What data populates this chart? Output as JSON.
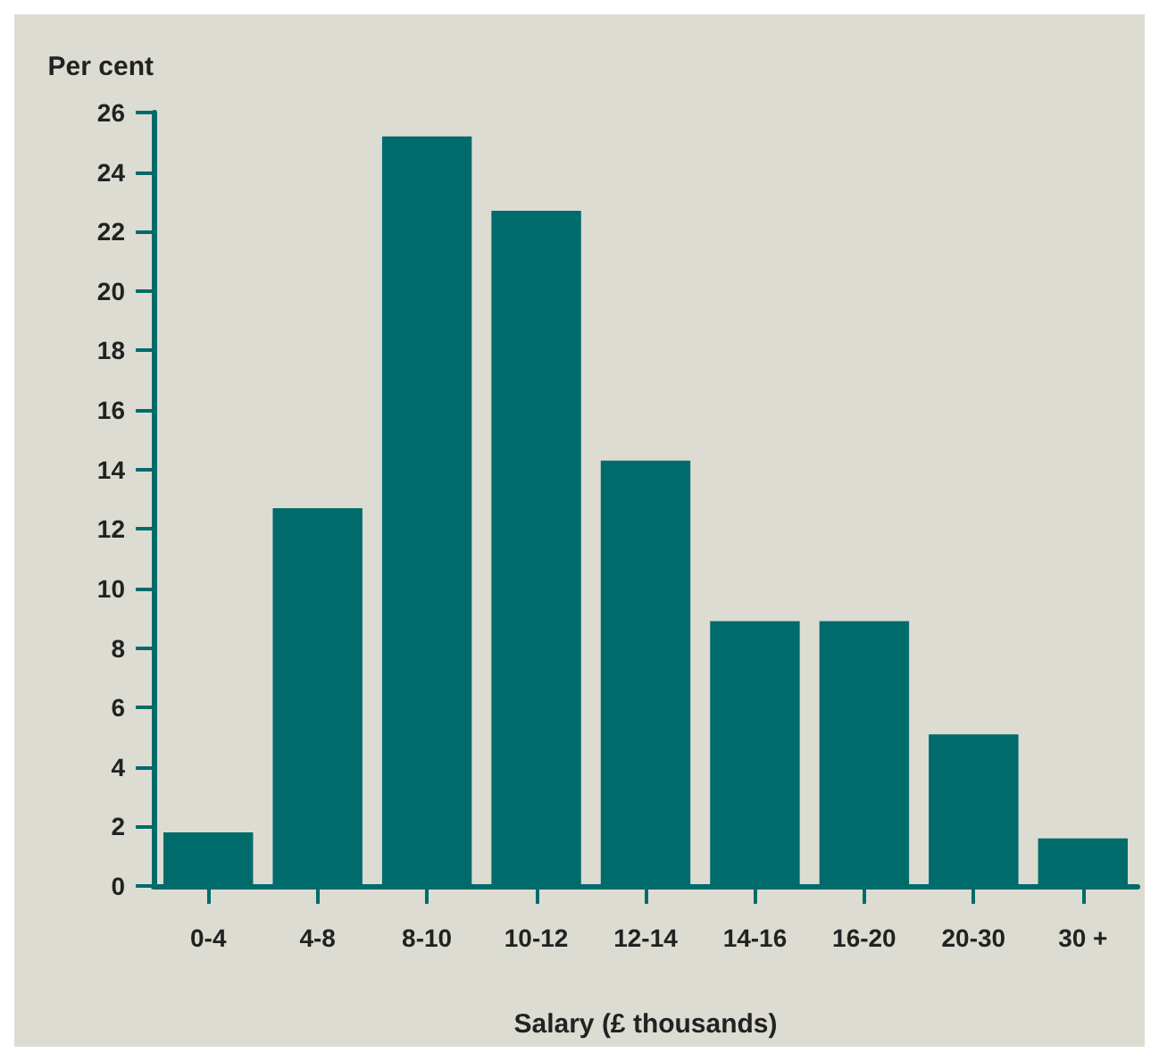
{
  "chart_data": {
    "type": "bar",
    "ylabel": "Per cent",
    "xlabel": "Salary (£ thousands)",
    "categories": [
      "0-4",
      "4-8",
      "8-10",
      "10-12",
      "12-14",
      "14-16",
      "16-20",
      "20-30",
      "30 +"
    ],
    "values": [
      1.8,
      12.7,
      25.2,
      22.7,
      14.3,
      8.9,
      8.9,
      5.1,
      1.6
    ],
    "color": "#006b6b",
    "ylim": [
      0,
      26
    ],
    "yticks": [
      0,
      2,
      4,
      6,
      8,
      10,
      12,
      14,
      16,
      18,
      20,
      22,
      24,
      26
    ],
    "grid": false
  }
}
